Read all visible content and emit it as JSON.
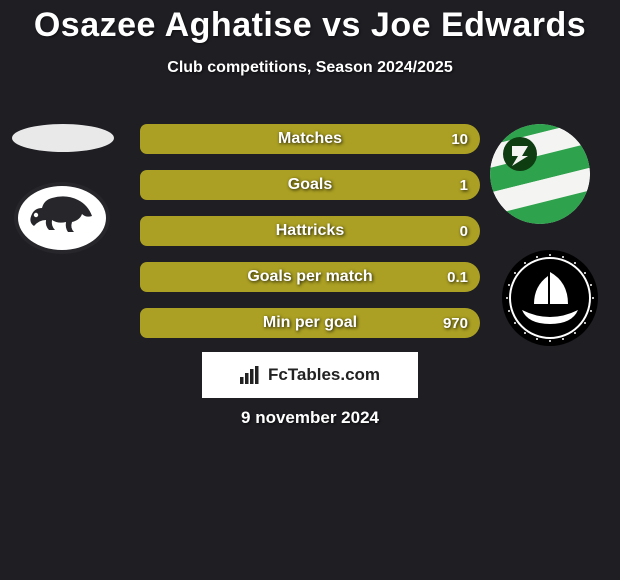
{
  "background_color": "#1e1e23",
  "title": "Osazee Aghatise vs Joe Edwards",
  "title_color": "#ffffff",
  "title_fontsize": 34,
  "subtitle": "Club competitions, Season 2024/2025",
  "subtitle_color": "#ffffff",
  "subtitle_fontsize": 16,
  "left_color": "#aba023",
  "right_color": "#aba023",
  "label_text_color": "#ffffff",
  "label_fontsize": 16,
  "value_text_color": "#ffffff",
  "value_fontsize": 15,
  "bars": [
    {
      "label": "Matches",
      "left_value": "",
      "right_value": "10",
      "left_pct": 2,
      "right_pct": 98
    },
    {
      "label": "Goals",
      "left_value": "",
      "right_value": "1",
      "left_pct": 2,
      "right_pct": 98
    },
    {
      "label": "Hattricks",
      "left_value": "",
      "right_value": "0",
      "left_pct": 2,
      "right_pct": 98
    },
    {
      "label": "Goals per match",
      "left_value": "",
      "right_value": "0.1",
      "left_pct": 2,
      "right_pct": 98
    },
    {
      "label": "Min per goal",
      "left_value": "",
      "right_value": "970",
      "left_pct": 2,
      "right_pct": 98
    }
  ],
  "crest_left": {
    "bg": "#ffffff",
    "fg": "#1e1e23"
  },
  "crest_right": {
    "bg": "#000000",
    "fg": "#ffffff"
  },
  "avatar_right": {
    "stripe_green": "#2fa24d",
    "stripe_white": "#f4f5f2",
    "logo_bg": "#0e3d12"
  },
  "watermark": {
    "bg": "#ffffff",
    "brand_prefix": "Fc",
    "brand_main": "Tables",
    "brand_suffix": ".com",
    "text_color": "#222222"
  },
  "date": "9 november 2024",
  "date_color": "#ffffff",
  "date_fontsize": 17
}
